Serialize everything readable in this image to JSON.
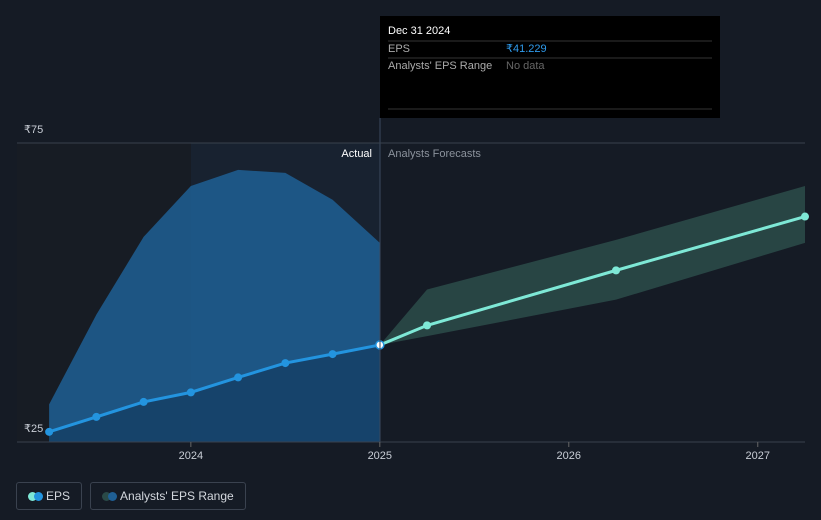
{
  "chart_data": {
    "type": "line",
    "annotations": {
      "actual": "Actual",
      "forecast": "Analysts Forecasts"
    },
    "xlim": [
      2023.08,
      2027.25
    ],
    "xticks": [
      2024,
      2025,
      2026,
      2027
    ],
    "ylim": [
      25,
      75
    ],
    "yticks": [
      {
        "value": 75,
        "label": "₹75"
      },
      {
        "value": 25,
        "label": "₹25"
      }
    ],
    "series": [
      {
        "name": "EPS",
        "color": "#2394df",
        "x": [
          2023.25,
          2023.5,
          2023.75,
          2024,
          2024.25,
          2024.5,
          2024.75,
          2025
        ],
        "values": [
          26.7,
          29.2,
          31.7,
          33.3,
          35.8,
          38.2,
          39.7,
          41.229
        ]
      }
    ],
    "past_range": {
      "color": "#1f5f94",
      "x": [
        2023.25,
        2023.5,
        2023.75,
        2024,
        2024.25,
        2024.5,
        2024.75,
        2025
      ],
      "high": [
        31.3,
        46.3,
        59.3,
        67.8,
        70.5,
        70.0,
        65.5,
        58.3
      ]
    },
    "forecast": {
      "color": "#7ee8d6",
      "x": [
        2025,
        2025.25,
        2026.25,
        2027.25
      ],
      "values": [
        41.229,
        44.5,
        53.7,
        62.7
      ]
    },
    "range": {
      "name": "Analysts' EPS Range",
      "color": "#2a4a48",
      "x": [
        2025,
        2025.25,
        2026.25,
        2027.25
      ],
      "low": [
        41.229,
        42.7,
        48.8,
        58.3
      ],
      "high": [
        41.229,
        50.5,
        58.8,
        67.8
      ]
    },
    "tooltip": {
      "date": "Dec 31 2024",
      "eps_label": "EPS",
      "eps_value": "₹41.229",
      "range_label": "Analysts' EPS Range",
      "range_value": "No data"
    }
  }
}
